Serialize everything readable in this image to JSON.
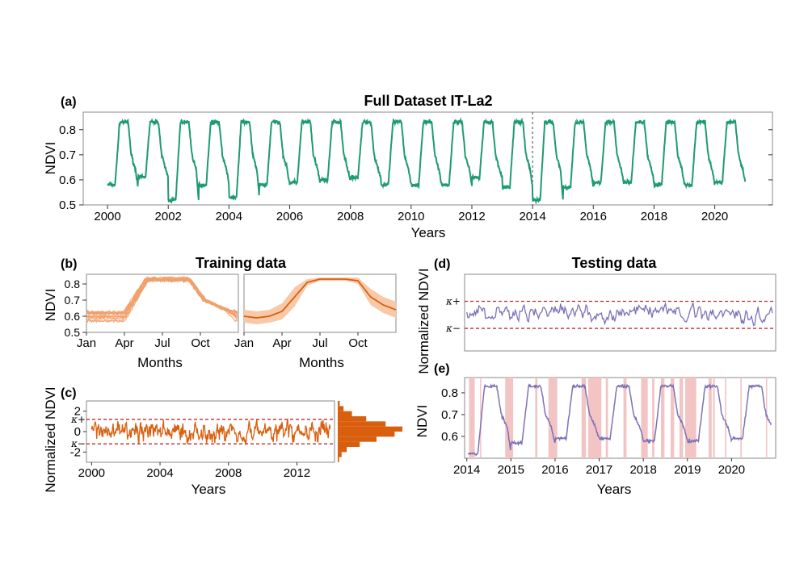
{
  "colors": {
    "green": "#1e9a73",
    "orange": "#d95f0e",
    "orange_light": "#f0a06a",
    "orange_band": "#f8c9a8",
    "purple": "#7b72b6",
    "red_dash": "#c62828",
    "anomaly_shade": "#f2c4c4"
  },
  "chart_data": [
    {
      "panel": "(a)",
      "type": "line",
      "title": "Full Dataset IT-La2",
      "xlabel": "Years",
      "ylabel": "NDVI",
      "xlim": [
        1999.2,
        2021.9
      ],
      "ylim": [
        0.5,
        0.87
      ],
      "xticks": [
        "2000",
        "2002",
        "2004",
        "2006",
        "2008",
        "2010",
        "2012",
        "2014",
        "2016",
        "2018",
        "2020"
      ],
      "yticks": [
        "0.5",
        "0.6",
        "0.7",
        "0.8"
      ],
      "split_line_year": 2014,
      "series": [
        {
          "x_start": 2000.0,
          "x_end": 2021.0,
          "seasonal_peak": 0.83,
          "winter_minima": [
            0.58,
            0.61,
            0.52,
            0.58,
            0.53,
            0.58,
            0.59,
            0.6,
            0.61,
            0.58,
            0.58,
            0.58,
            0.61,
            0.57,
            0.52,
            0.57,
            0.59,
            0.59,
            0.58,
            0.58,
            0.59
          ]
        }
      ]
    },
    {
      "panel": "(b)",
      "type": "line",
      "title": "Training data",
      "xlabel": "Months",
      "ylabel": "NDVI",
      "xlim": [
        0,
        12
      ],
      "ylim": [
        0.5,
        0.86
      ],
      "xticks": [
        "Jan",
        "Apr",
        "Jul",
        "Oct"
      ],
      "yticks": [
        "0.5",
        "0.6",
        "0.7",
        "0.8"
      ],
      "mean_curve": {
        "months": [
          0,
          1,
          2,
          3,
          4,
          5,
          6,
          7,
          8,
          9,
          10,
          11,
          12
        ],
        "values": [
          0.6,
          0.59,
          0.6,
          0.63,
          0.72,
          0.81,
          0.83,
          0.83,
          0.83,
          0.82,
          0.72,
          0.67,
          0.64
        ]
      },
      "band_halfwidth": [
        0.04,
        0.04,
        0.04,
        0.05,
        0.06,
        0.02,
        0.01,
        0.01,
        0.01,
        0.02,
        0.05,
        0.05,
        0.05
      ],
      "year_curves_count": 14
    },
    {
      "panel": "(c)",
      "type": "line",
      "xlabel": "Years",
      "ylabel": "Normalized NDVI",
      "xlim": [
        1999.7,
        2014.2
      ],
      "ylim": [
        -3,
        3
      ],
      "xticks": [
        "2000",
        "2004",
        "2008",
        "2012"
      ],
      "yticks": [
        "2",
        "0",
        "-2"
      ],
      "kappa_plus": 1.2,
      "kappa_minus": -1.2,
      "kappa_plus_label": "κ+",
      "kappa_minus_label": "κ−",
      "histogram": {
        "bins": [
          -2.75,
          -2.25,
          -1.75,
          -1.25,
          -0.75,
          -0.25,
          0.25,
          0.75,
          1.25,
          1.75,
          2.25,
          2.75
        ],
        "counts": [
          2,
          6,
          14,
          34,
          60,
          88,
          100,
          74,
          44,
          22,
          9,
          3
        ]
      }
    },
    {
      "panel": "(d)",
      "type": "line",
      "title": "Testing data",
      "xlabel": "",
      "ylabel": "Normalized NDVI",
      "xlim": [
        2013.95,
        2021.0
      ],
      "ylim": [
        -3.2,
        3.6
      ],
      "kappa_plus": 1.2,
      "kappa_minus": -1.2,
      "kappa_plus_label": "κ+",
      "kappa_minus_label": "κ−"
    },
    {
      "panel": "(e)",
      "type": "line",
      "xlabel": "Years",
      "ylabel": "NDVI",
      "xlim": [
        2013.95,
        2021.0
      ],
      "ylim": [
        0.5,
        0.87
      ],
      "xticks": [
        "2014",
        "2015",
        "2016",
        "2017",
        "2018",
        "2019",
        "2020"
      ],
      "yticks": [
        "0.6",
        "0.7",
        "0.8"
      ],
      "anomaly_spans": [
        [
          2014.05,
          2014.18
        ],
        [
          2014.3,
          2014.32
        ],
        [
          2014.87,
          2015.05
        ],
        [
          2015.55,
          2015.6
        ],
        [
          2015.85,
          2016.05
        ],
        [
          2016.6,
          2016.7
        ],
        [
          2016.75,
          2017.05
        ],
        [
          2017.15,
          2017.2
        ],
        [
          2017.55,
          2017.62
        ],
        [
          2017.95,
          2018.1
        ],
        [
          2018.2,
          2018.25
        ],
        [
          2018.4,
          2018.48
        ],
        [
          2018.62,
          2018.7
        ],
        [
          2018.82,
          2018.9
        ],
        [
          2018.95,
          2019.2
        ],
        [
          2019.48,
          2019.55
        ],
        [
          2019.58,
          2019.62
        ],
        [
          2019.85,
          2019.88
        ],
        [
          2020.2,
          2020.23
        ],
        [
          2020.78,
          2020.8
        ]
      ]
    }
  ]
}
